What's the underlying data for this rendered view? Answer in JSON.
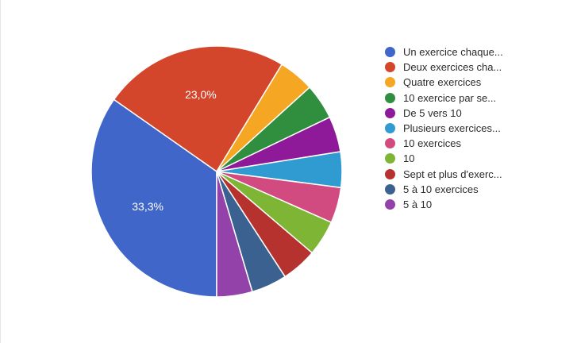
{
  "chart_data": {
    "type": "pie",
    "slices": [
      {
        "label": "Un exercice chaque...",
        "value": 33.3,
        "color": "#3f66c8",
        "value_label": "33,3%"
      },
      {
        "label": "Deux exercices cha...",
        "value": 23.0,
        "color": "#d4462b",
        "value_label": "23,0%"
      },
      {
        "label": "Quatre exercices",
        "value": 4.4,
        "color": "#f5a623",
        "value_label": ""
      },
      {
        "label": "10 exercice par se...",
        "value": 4.4,
        "color": "#2f8f3e",
        "value_label": ""
      },
      {
        "label": "De 5 vers 10",
        "value": 4.4,
        "color": "#8e1a9a",
        "value_label": ""
      },
      {
        "label": "Plusieurs exercices...",
        "value": 4.4,
        "color": "#2f9bd1",
        "value_label": ""
      },
      {
        "label": "10 exercices",
        "value": 4.4,
        "color": "#d24b80",
        "value_label": ""
      },
      {
        "label": "10",
        "value": 4.4,
        "color": "#7fb535",
        "value_label": ""
      },
      {
        "label": "Sept et plus d'exerc...",
        "value": 4.4,
        "color": "#b6322e",
        "value_label": ""
      },
      {
        "label": "5 à 10 exercices",
        "value": 4.4,
        "color": "#3b6191",
        "value_label": ""
      },
      {
        "label": "5 à 10",
        "value": 4.4,
        "color": "#9242a8",
        "value_label": ""
      }
    ]
  }
}
